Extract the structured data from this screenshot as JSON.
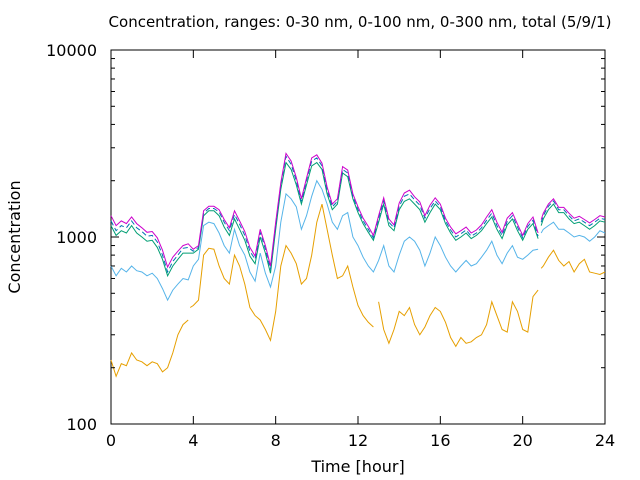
{
  "chart_data": {
    "type": "line",
    "title": "Concentration, ranges: 0-30 nm, 0-100 nm, 0-300 nm, total (5/9/1)",
    "xlabel": "Time [hour]",
    "ylabel": "Concentration",
    "xlim": [
      0,
      24
    ],
    "ylim": [
      100,
      10000
    ],
    "yscale": "log",
    "x_ticks": [
      0,
      4,
      8,
      12,
      16,
      20,
      24
    ],
    "x_tick_labels": [
      "0",
      "4",
      "8",
      "12",
      "16",
      "20",
      "24"
    ],
    "y_ticks": [
      100,
      1000,
      10000
    ],
    "y_tick_labels": [
      "100",
      "1000",
      "10000"
    ],
    "grid": false,
    "legend": "none",
    "series": [
      {
        "color": "#e69f00",
        "x": [
          0,
          0.25,
          0.5,
          0.75,
          1,
          1.25,
          1.5,
          1.75,
          2,
          2.25,
          2.5,
          2.75,
          3,
          3.25,
          3.5,
          3.75,
          null,
          3.85,
          4,
          4.25,
          4.5,
          4.75,
          5,
          5.25,
          5.5,
          5.75,
          6,
          6.25,
          6.5,
          6.75,
          7,
          7.25,
          7.5,
          7.75,
          8,
          8.25,
          8.5,
          8.75,
          9,
          9.25,
          9.5,
          9.75,
          10,
          10.25,
          10.5,
          10.75,
          11,
          11.25,
          11.5,
          11.75,
          12,
          12.25,
          12.5,
          12.75,
          null,
          13,
          13.25,
          13.5,
          13.75,
          14,
          14.25,
          14.5,
          14.75,
          15,
          15.25,
          15.5,
          15.75,
          16,
          16.25,
          16.5,
          16.75,
          17,
          17.25,
          17.5,
          17.75,
          18,
          18.25,
          18.5,
          18.75,
          19,
          19.25,
          19.5,
          19.75,
          20,
          20.25,
          20.5,
          20.75,
          null,
          20.9,
          21,
          21.25,
          21.5,
          21.75,
          22,
          22.25,
          22.5,
          22.75,
          23,
          23.25,
          23.5,
          23.75,
          24
        ],
        "y": [
          220,
          180,
          210,
          205,
          240,
          220,
          215,
          205,
          215,
          210,
          190,
          200,
          240,
          300,
          340,
          360,
          null,
          420,
          430,
          460,
          800,
          870,
          860,
          700,
          600,
          560,
          800,
          700,
          560,
          420,
          380,
          360,
          320,
          280,
          400,
          700,
          900,
          820,
          720,
          560,
          600,
          800,
          1200,
          1500,
          1100,
          800,
          600,
          620,
          700,
          540,
          430,
          380,
          350,
          330,
          null,
          450,
          320,
          270,
          320,
          400,
          380,
          420,
          340,
          300,
          330,
          380,
          420,
          400,
          350,
          290,
          260,
          290,
          270,
          275,
          290,
          300,
          340,
          450,
          380,
          320,
          310,
          450,
          400,
          320,
          310,
          480,
          520,
          null,
          680,
          700,
          780,
          850,
          750,
          700,
          740,
          650,
          720,
          760,
          650,
          640,
          630,
          650
        ]
      },
      {
        "color": "#56b4e9",
        "x": [
          0,
          0.25,
          0.5,
          0.75,
          1,
          1.25,
          1.5,
          1.75,
          2,
          2.25,
          2.5,
          2.75,
          3,
          3.25,
          3.5,
          3.75,
          4,
          4.25,
          4.5,
          4.75,
          5,
          5.25,
          5.5,
          5.75,
          6,
          6.25,
          6.5,
          6.75,
          7,
          7.25,
          7.5,
          7.75,
          8,
          8.25,
          8.5,
          8.75,
          9,
          9.25,
          9.5,
          9.75,
          10,
          10.25,
          10.5,
          10.75,
          11,
          11.25,
          11.5,
          11.75,
          12,
          12.25,
          12.5,
          12.75,
          13,
          13.25,
          13.5,
          13.75,
          14,
          14.25,
          14.5,
          14.75,
          15,
          15.25,
          15.5,
          15.75,
          16,
          16.25,
          16.5,
          16.75,
          17,
          17.25,
          17.5,
          17.75,
          18,
          18.25,
          18.5,
          18.75,
          19,
          19.25,
          19.5,
          19.75,
          20,
          20.25,
          20.5,
          20.75,
          null,
          20.9,
          21,
          21.25,
          21.5,
          21.75,
          22,
          22.25,
          22.5,
          22.75,
          23,
          23.25,
          23.5,
          23.75,
          24
        ],
        "y": [
          700,
          620,
          680,
          650,
          700,
          660,
          650,
          620,
          640,
          600,
          530,
          460,
          520,
          560,
          600,
          590,
          700,
          760,
          1150,
          1200,
          1180,
          1050,
          900,
          820,
          1100,
          900,
          800,
          650,
          580,
          820,
          640,
          540,
          700,
          1200,
          1700,
          1600,
          1450,
          1100,
          1300,
          1650,
          2000,
          1800,
          1500,
          1200,
          1100,
          1300,
          1350,
          1000,
          900,
          780,
          700,
          650,
          750,
          900,
          700,
          650,
          800,
          950,
          1000,
          950,
          850,
          700,
          820,
          1000,
          900,
          780,
          700,
          650,
          700,
          750,
          700,
          720,
          780,
          850,
          950,
          800,
          720,
          820,
          900,
          780,
          760,
          800,
          850,
          860,
          null,
          1050,
          1100,
          1150,
          1200,
          1100,
          1100,
          1050,
          1000,
          1020,
          1000,
          950,
          1000,
          1080,
          1050
        ]
      },
      {
        "color": "#009e73",
        "x": [
          0,
          0.25,
          0.5,
          0.75,
          1,
          1.25,
          1.5,
          1.75,
          2,
          2.25,
          2.5,
          2.75,
          3,
          3.25,
          3.5,
          3.75,
          4,
          4.25,
          4.5,
          4.75,
          5,
          5.25,
          5.5,
          5.75,
          6,
          6.25,
          6.5,
          6.75,
          7,
          7.25,
          7.5,
          7.75,
          8,
          8.25,
          8.5,
          8.75,
          9,
          9.25,
          9.5,
          9.75,
          10,
          10.25,
          10.5,
          10.75,
          11,
          11.25,
          11.5,
          11.75,
          12,
          12.25,
          12.5,
          12.75,
          13,
          13.25,
          13.5,
          13.75,
          14,
          14.25,
          14.5,
          14.75,
          15,
          15.25,
          15.5,
          15.75,
          16,
          16.25,
          16.5,
          16.75,
          17,
          17.25,
          17.5,
          17.75,
          18,
          18.25,
          18.5,
          18.75,
          19,
          19.25,
          19.5,
          19.75,
          20,
          20.25,
          20.5,
          20.75,
          null,
          20.9,
          21,
          21.25,
          21.5,
          21.75,
          22,
          22.25,
          22.5,
          22.75,
          23,
          23.25,
          23.5,
          23.75,
          24
        ],
        "y": [
          1150,
          1020,
          1080,
          1050,
          1150,
          1050,
          1000,
          950,
          960,
          880,
          760,
          620,
          700,
          760,
          820,
          820,
          820,
          860,
          1300,
          1380,
          1380,
          1300,
          1130,
          1020,
          1250,
          1100,
          960,
          790,
          720,
          1000,
          820,
          640,
          1100,
          1800,
          2500,
          2300,
          1900,
          1500,
          1900,
          2400,
          2500,
          2300,
          1700,
          1400,
          1500,
          2200,
          2100,
          1600,
          1350,
          1180,
          1060,
          960,
          1200,
          1500,
          1150,
          1080,
          1400,
          1550,
          1600,
          1500,
          1400,
          1200,
          1350,
          1500,
          1400,
          1180,
          1050,
          960,
          1000,
          1050,
          980,
          1020,
          1080,
          1180,
          1280,
          1100,
          980,
          1160,
          1250,
          1080,
          960,
          1100,
          1180,
          980,
          null,
          1150,
          1250,
          1400,
          1500,
          1350,
          1350,
          1250,
          1180,
          1200,
          1150,
          1100,
          1150,
          1220,
          1200
        ]
      },
      {
        "color": "#0072b2",
        "dash": true,
        "x": [
          0,
          0.25,
          0.5,
          0.75,
          1,
          1.25,
          1.5,
          1.75,
          2,
          2.25,
          2.5,
          2.75,
          3,
          3.25,
          3.5,
          3.75,
          4,
          4.25,
          4.5,
          4.75,
          5,
          5.25,
          5.5,
          5.75,
          6,
          6.25,
          6.5,
          6.75,
          7,
          7.25,
          7.5,
          7.75,
          8,
          8.25,
          8.5,
          8.75,
          9,
          9.25,
          9.5,
          9.75,
          10,
          10.25,
          10.5,
          10.75,
          11,
          11.25,
          11.5,
          11.75,
          12,
          12.25,
          12.5,
          12.75,
          13,
          13.25,
          13.5,
          13.75,
          14,
          14.25,
          14.5,
          14.75,
          15,
          15.25,
          15.5,
          15.75,
          16,
          16.25,
          16.5,
          16.75,
          17,
          17.25,
          17.5,
          17.75,
          18,
          18.25,
          18.5,
          18.75,
          19,
          19.25,
          19.5,
          19.75,
          20,
          20.25,
          20.5,
          20.75,
          null,
          20.9,
          21,
          21.25,
          21.5,
          21.75,
          22,
          22.25,
          22.5,
          22.75,
          23,
          23.25,
          23.5,
          23.75,
          24
        ],
        "y": [
          1220,
          1080,
          1150,
          1120,
          1220,
          1120,
          1070,
          1010,
          1020,
          940,
          800,
          650,
          740,
          800,
          870,
          880,
          840,
          880,
          1340,
          1420,
          1420,
          1360,
          1200,
          1080,
          1320,
          1170,
          1020,
          840,
          760,
          1060,
          860,
          670,
          1150,
          1900,
          2700,
          2450,
          2000,
          1550,
          2000,
          2550,
          2650,
          2400,
          1780,
          1450,
          1550,
          2300,
          2200,
          1650,
          1400,
          1220,
          1100,
          990,
          1260,
          1560,
          1200,
          1120,
          1460,
          1650,
          1700,
          1580,
          1480,
          1260,
          1420,
          1560,
          1450,
          1220,
          1090,
          1000,
          1040,
          1090,
          1010,
          1050,
          1120,
          1230,
          1340,
          1150,
          1020,
          1210,
          1300,
          1130,
          990,
          1140,
          1230,
          1010,
          null,
          1200,
          1300,
          1460,
          1560,
          1400,
          1400,
          1300,
          1220,
          1250,
          1200,
          1150,
          1200,
          1260,
          1240
        ]
      },
      {
        "color": "#cc00cc",
        "x": [
          0,
          0.25,
          0.5,
          0.75,
          1,
          1.25,
          1.5,
          1.75,
          2,
          2.25,
          2.5,
          2.75,
          3,
          3.25,
          3.5,
          3.75,
          4,
          4.25,
          4.5,
          4.75,
          5,
          5.25,
          5.5,
          5.75,
          6,
          6.25,
          6.5,
          6.75,
          7,
          7.25,
          7.5,
          7.75,
          8,
          8.25,
          8.5,
          8.75,
          9,
          9.25,
          9.5,
          9.75,
          10,
          10.25,
          10.5,
          10.75,
          11,
          11.25,
          11.5,
          11.75,
          12,
          12.25,
          12.5,
          12.75,
          13,
          13.25,
          13.5,
          13.75,
          14,
          14.25,
          14.5,
          14.75,
          15,
          15.25,
          15.5,
          15.75,
          16,
          16.25,
          16.5,
          16.75,
          17,
          17.25,
          17.5,
          17.75,
          18,
          18.25,
          18.5,
          18.75,
          19,
          19.25,
          19.5,
          19.75,
          20,
          20.25,
          20.5,
          20.75,
          null,
          20.9,
          21,
          21.25,
          21.5,
          21.75,
          22,
          22.25,
          22.5,
          22.75,
          23,
          23.25,
          23.5,
          23.75,
          24
        ],
        "y": [
          1300,
          1150,
          1220,
          1180,
          1280,
          1180,
          1120,
          1060,
          1070,
          990,
          850,
          690,
          780,
          840,
          900,
          920,
          860,
          900,
          1380,
          1460,
          1460,
          1400,
          1240,
          1120,
          1380,
          1220,
          1070,
          880,
          790,
          1100,
          900,
          700,
          1200,
          1950,
          2800,
          2550,
          2080,
          1600,
          2060,
          2650,
          2750,
          2480,
          1850,
          1500,
          1600,
          2380,
          2280,
          1700,
          1450,
          1260,
          1140,
          1020,
          1300,
          1620,
          1250,
          1160,
          1520,
          1720,
          1780,
          1640,
          1540,
          1300,
          1480,
          1620,
          1500,
          1260,
          1130,
          1040,
          1080,
          1130,
          1050,
          1090,
          1160,
          1280,
          1400,
          1200,
          1060,
          1260,
          1350,
          1170,
          1020,
          1180,
          1280,
          1050,
          null,
          1240,
          1340,
          1500,
          1600,
          1440,
          1440,
          1340,
          1260,
          1290,
          1240,
          1190,
          1240,
          1300,
          1280
        ]
      }
    ]
  }
}
